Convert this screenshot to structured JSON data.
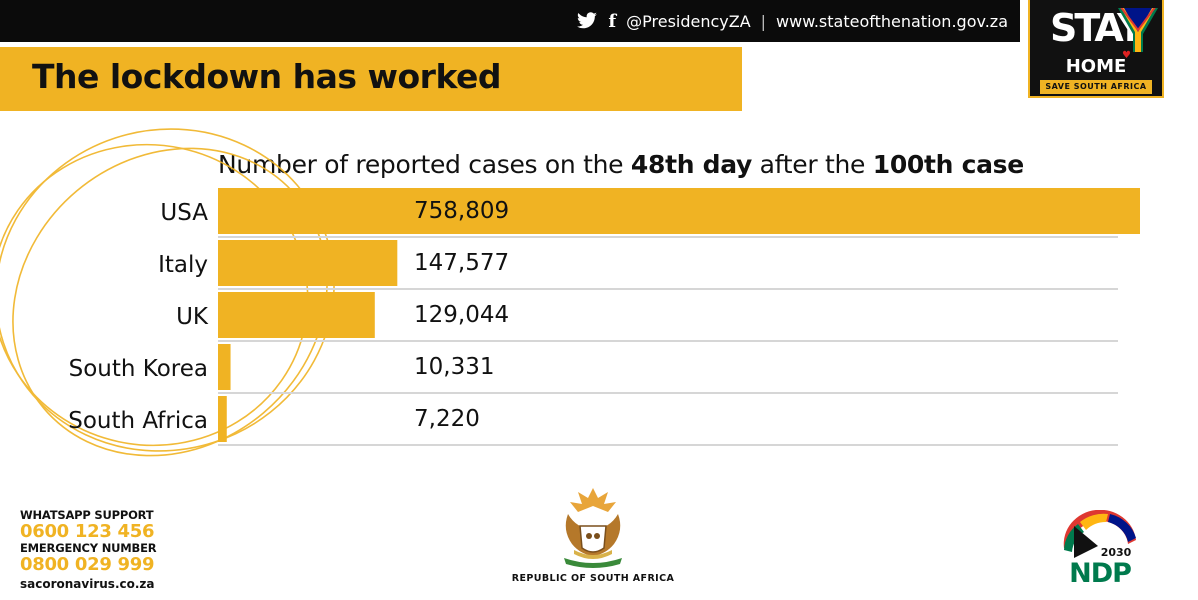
{
  "header": {
    "social_handle": "@PresidencyZA",
    "separator": "|",
    "website": "www.stateofthenation.gov.za",
    "fb_glyph": "f"
  },
  "stay_home": {
    "stay": "STAY",
    "home": "HOME",
    "tagline": "SAVE SOUTH AFRICA"
  },
  "banner": {
    "title": "The lockdown has worked"
  },
  "chart_title": {
    "part1": "Number of reported cases on the ",
    "bold1": "48th day",
    "part2": " after the ",
    "bold2": "100th case"
  },
  "chart_data": {
    "type": "bar",
    "orientation": "horizontal",
    "title": "Number of reported cases on the 48th day after the 100th case",
    "categories": [
      "USA",
      "Italy",
      "UK",
      "South Korea",
      "South Africa"
    ],
    "values": [
      758809,
      147577,
      129044,
      10331,
      7220
    ],
    "value_labels": [
      "758,809",
      "147,577",
      "129,044",
      "10,331",
      "7,220"
    ],
    "xlim": [
      0,
      758809
    ],
    "grid": false,
    "legend": "none"
  },
  "contacts": {
    "whatsapp_label": "WHATSAPP SUPPORT",
    "whatsapp_number": "0600 123 456",
    "emergency_label": "EMERGENCY NUMBER",
    "emergency_number": "0800 029 999",
    "website": "sacoronavirus.co.za"
  },
  "footer": {
    "republic": "REPUBLIC OF SOUTH AFRICA",
    "ndp_year": "2030",
    "ndp": "NDP"
  },
  "colors": {
    "accent": "#f0b323",
    "dark": "#0b0b0b",
    "row_line": "#d6d6d6"
  },
  "icons": [
    "twitter-icon",
    "facebook-icon",
    "coat-of-arms-icon",
    "ndp-logo-icon",
    "south-africa-flag-icon"
  ]
}
